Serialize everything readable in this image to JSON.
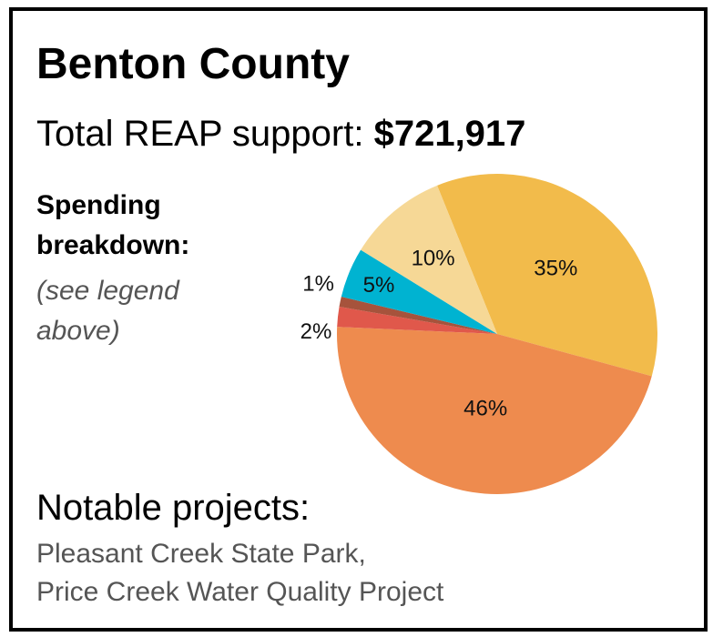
{
  "title": "Benton County",
  "total_label": "Total REAP support:",
  "total_value": "$721,917",
  "breakdown_label": "Spending breakdown:",
  "legend_note": "(see legend above)",
  "notable_label": "Notable projects:",
  "projects": [
    "Pleasant Creek State Park,",
    "Price Creek Water Quality Project"
  ],
  "chart_data": {
    "type": "pie",
    "slices": [
      {
        "label": "35%",
        "value": 35,
        "color": "#F2BB4B"
      },
      {
        "label": "46%",
        "value": 46,
        "color": "#EE8B4E"
      },
      {
        "label": "2%",
        "value": 2,
        "color": "#E0584B"
      },
      {
        "label": "1%",
        "value": 1,
        "color": "#A6533C"
      },
      {
        "label": "5%",
        "value": 5,
        "color": "#00B3D1"
      },
      {
        "label": "10%",
        "value": 10,
        "color": "#F6D896"
      }
    ]
  }
}
